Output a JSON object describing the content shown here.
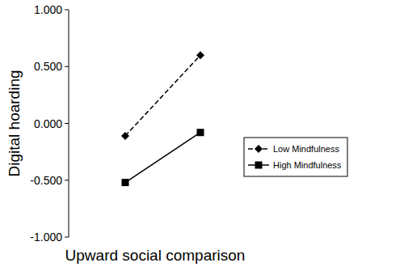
{
  "chart_data": {
    "type": "line",
    "x_label": "Upward social comparison",
    "y_label": "Digital hoarding",
    "categories": [
      null,
      null
    ],
    "series": [
      {
        "name": "Low Mindfulness",
        "color": "#000000",
        "line_style": "dashed",
        "marker": "diamond",
        "values": [
          -0.11,
          0.6
        ]
      },
      {
        "name": "High Mindfulness",
        "color": "#000000",
        "line_style": "solid",
        "marker": "square",
        "values": [
          -0.52,
          -0.08
        ]
      }
    ],
    "ylim": [
      -1,
      1
    ],
    "yticks": [
      {
        "value": -1,
        "label": "-1.000"
      },
      {
        "value": -0.5,
        "label": "-0.500"
      },
      {
        "value": 0,
        "label": "0.000"
      },
      {
        "value": 0.5,
        "label": "0.500"
      },
      {
        "value": 1,
        "label": "1.000"
      }
    ],
    "grid": false,
    "legend": "right",
    "tick_labels": "y"
  }
}
